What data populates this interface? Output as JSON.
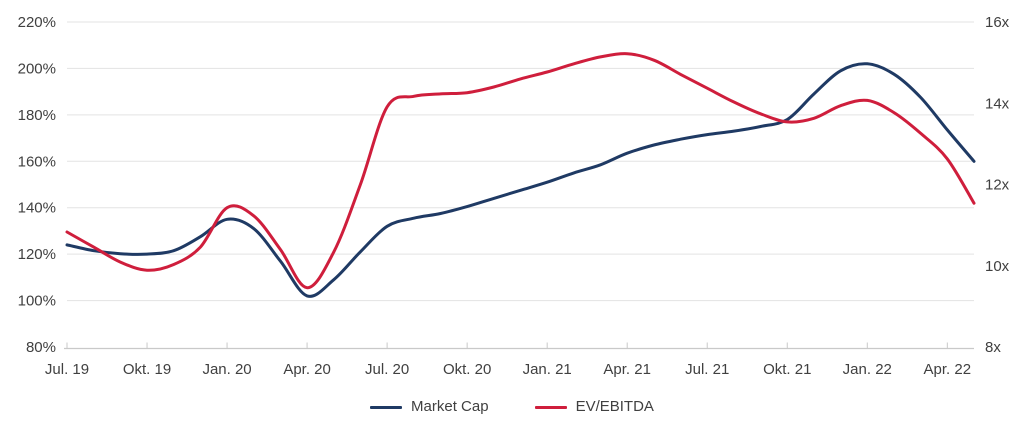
{
  "chart_data": {
    "type": "line",
    "title": "",
    "legend_position": "bottom",
    "grid": "horizontal",
    "x_tick_labels": [
      "Jul. 19",
      "Okt. 19",
      "Jan. 20",
      "Apr. 20",
      "Jul. 20",
      "Okt. 20",
      "Jan. 21",
      "Apr. 21",
      "Jul. 21",
      "Okt. 21",
      "Jan. 22",
      "Apr. 22"
    ],
    "months": [
      "Jul. 19",
      "Aug. 19",
      "Sep. 19",
      "Okt. 19",
      "Nov. 19",
      "Dez. 19",
      "Jan. 20",
      "Feb. 20",
      "Mär. 20",
      "Apr. 20",
      "Mai 20",
      "Jun. 20",
      "Jul. 20",
      "Aug. 20",
      "Sep. 20",
      "Okt. 20",
      "Nov. 20",
      "Dez. 20",
      "Jan. 21",
      "Feb. 21",
      "Mär. 21",
      "Apr. 21",
      "Mai 21",
      "Jun. 21",
      "Jul. 21",
      "Aug. 21",
      "Sep. 21",
      "Okt. 21",
      "Nov. 21",
      "Dez. 21",
      "Jan. 22",
      "Feb. 22",
      "Mär. 22",
      "Apr. 22",
      "Mai 22"
    ],
    "left_axis": {
      "unit": "%",
      "min": 80,
      "max": 220,
      "step": 20,
      "labels": [
        "220%",
        "200%",
        "180%",
        "160%",
        "140%",
        "120%",
        "100%",
        "80%"
      ]
    },
    "right_axis": {
      "unit": "x",
      "min": 8,
      "max": 16,
      "step": 2,
      "labels": [
        "16x",
        "14x",
        "12x",
        "10x",
        "8x"
      ]
    },
    "series": [
      {
        "name": "Market Cap",
        "axis": "left",
        "color": "#1f3a64",
        "values": [
          124,
          121.5,
          120.2,
          120,
          121.5,
          127.5,
          135,
          131,
          117,
          102,
          109,
          121,
          132,
          135.5,
          137.5,
          140.5,
          144,
          147.5,
          151,
          155,
          158.5,
          163.5,
          167,
          169.5,
          171.5,
          173,
          175,
          178,
          189,
          199,
          202,
          197.5,
          187.5,
          173.5,
          160
        ]
      },
      {
        "name": "EV/EBITDA",
        "axis": "right",
        "color": "#cf1e3c",
        "values": [
          10.83,
          10.46,
          10.09,
          9.89,
          10.03,
          10.46,
          11.43,
          11.23,
          10.4,
          9.46,
          10.34,
          12.0,
          13.91,
          14.17,
          14.23,
          14.26,
          14.4,
          14.6,
          14.77,
          14.97,
          15.14,
          15.22,
          15.06,
          14.71,
          14.37,
          14.03,
          13.74,
          13.54,
          13.63,
          13.94,
          14.07,
          13.77,
          13.26,
          12.63,
          11.54
        ]
      }
    ],
    "colors": {
      "grid": "#e3e3e3",
      "axis": "#c9c9c9"
    }
  }
}
